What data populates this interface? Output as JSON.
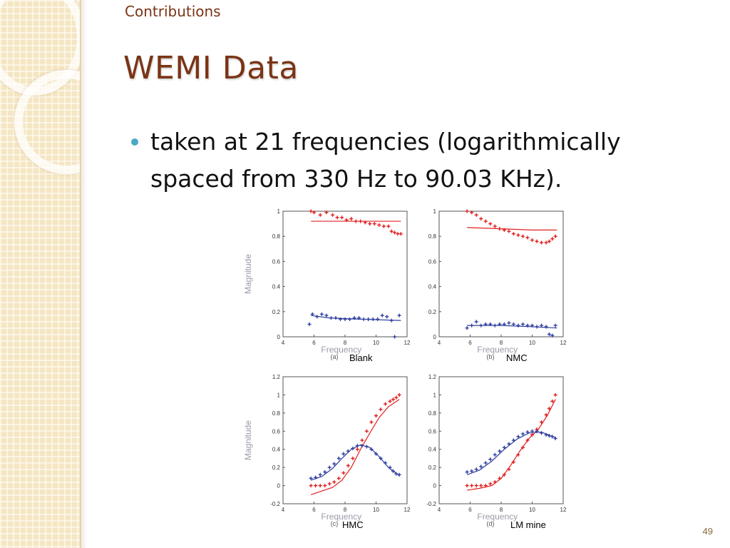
{
  "slide": {
    "section": "Contributions",
    "title": "WEMI Data",
    "bullet": "taken at 21 frequencies (logarithmically spaced from 330 Hz to 90.03 KHz).",
    "page_number": "49"
  },
  "chart_data": [
    {
      "type": "scatter",
      "panel": "(a)",
      "caption": "Blank",
      "xlabel": "Frequency",
      "ylabel": "Magnitude",
      "xlim": [
        4,
        12
      ],
      "ylim": [
        0,
        1
      ],
      "xticks": [
        4,
        6,
        8,
        10,
        12
      ],
      "yticks": [
        0,
        0.2,
        0.4,
        0.6,
        0.8,
        1
      ],
      "ytick_labels": [
        "0",
        "0.2",
        "0.4",
        "0.6",
        "0.8",
        "1"
      ],
      "series": [
        {
          "color": "#e02020",
          "points": [
            [
              5.8,
              1.0
            ],
            [
              6.0,
              0.99
            ],
            [
              6.4,
              0.97
            ],
            [
              6.8,
              0.99
            ],
            [
              7.2,
              0.97
            ],
            [
              7.5,
              0.95
            ],
            [
              7.8,
              0.95
            ],
            [
              8.1,
              0.93
            ],
            [
              8.4,
              0.94
            ],
            [
              8.7,
              0.92
            ],
            [
              9.0,
              0.92
            ],
            [
              9.3,
              0.91
            ],
            [
              9.6,
              0.9
            ],
            [
              9.9,
              0.9
            ],
            [
              10.2,
              0.89
            ],
            [
              10.5,
              0.88
            ],
            [
              10.8,
              0.88
            ],
            [
              11.0,
              0.84
            ],
            [
              11.2,
              0.83
            ],
            [
              11.4,
              0.82
            ],
            [
              11.6,
              0.82
            ]
          ],
          "fit": [
            [
              5.8,
              0.92
            ],
            [
              11.6,
              0.92
            ]
          ]
        },
        {
          "color": "#3040a0",
          "points": [
            [
              5.7,
              0.1
            ],
            [
              5.9,
              0.18
            ],
            [
              6.2,
              0.16
            ],
            [
              6.5,
              0.18
            ],
            [
              6.8,
              0.17
            ],
            [
              7.1,
              0.15
            ],
            [
              7.4,
              0.15
            ],
            [
              7.7,
              0.14
            ],
            [
              8.0,
              0.14
            ],
            [
              8.3,
              0.14
            ],
            [
              8.6,
              0.15
            ],
            [
              8.9,
              0.15
            ],
            [
              9.2,
              0.14
            ],
            [
              9.5,
              0.14
            ],
            [
              9.8,
              0.14
            ],
            [
              10.1,
              0.14
            ],
            [
              10.4,
              0.17
            ],
            [
              10.7,
              0.16
            ],
            [
              11.0,
              0.13
            ],
            [
              11.2,
              0.0
            ],
            [
              11.5,
              0.17
            ]
          ],
          "fit": [
            [
              5.8,
              0.17
            ],
            [
              7,
              0.15
            ],
            [
              9,
              0.14
            ],
            [
              11.6,
              0.13
            ]
          ]
        }
      ]
    },
    {
      "type": "scatter",
      "panel": "(b)",
      "caption": "NMC",
      "xlabel": "Frequency",
      "xlim": [
        4,
        12
      ],
      "ylim": [
        0,
        1
      ],
      "xticks": [
        4,
        6,
        8,
        10,
        12
      ],
      "yticks": [
        0,
        0.2,
        0.4,
        0.6,
        0.8,
        1
      ],
      "ytick_labels": [
        "0",
        "0.2",
        "0.4",
        "0.6",
        "0.8",
        "1"
      ],
      "series": [
        {
          "color": "#e02020",
          "points": [
            [
              5.8,
              1.0
            ],
            [
              6.1,
              0.99
            ],
            [
              6.4,
              0.97
            ],
            [
              6.7,
              0.94
            ],
            [
              7.0,
              0.92
            ],
            [
              7.3,
              0.9
            ],
            [
              7.6,
              0.88
            ],
            [
              7.9,
              0.86
            ],
            [
              8.2,
              0.85
            ],
            [
              8.5,
              0.84
            ],
            [
              8.8,
              0.82
            ],
            [
              9.1,
              0.81
            ],
            [
              9.4,
              0.8
            ],
            [
              9.7,
              0.79
            ],
            [
              10.0,
              0.77
            ],
            [
              10.3,
              0.76
            ],
            [
              10.6,
              0.75
            ],
            [
              10.9,
              0.75
            ],
            [
              11.1,
              0.76
            ],
            [
              11.3,
              0.78
            ],
            [
              11.5,
              0.8
            ]
          ],
          "fit": [
            [
              5.8,
              0.87
            ],
            [
              8,
              0.86
            ],
            [
              10,
              0.85
            ],
            [
              11.6,
              0.85
            ]
          ]
        },
        {
          "color": "#3040a0",
          "points": [
            [
              5.8,
              0.07
            ],
            [
              6.1,
              0.09
            ],
            [
              6.4,
              0.12
            ],
            [
              6.7,
              0.09
            ],
            [
              7.0,
              0.1
            ],
            [
              7.3,
              0.1
            ],
            [
              7.6,
              0.09
            ],
            [
              7.9,
              0.1
            ],
            [
              8.2,
              0.1
            ],
            [
              8.5,
              0.11
            ],
            [
              8.8,
              0.1
            ],
            [
              9.1,
              0.09
            ],
            [
              9.4,
              0.1
            ],
            [
              9.7,
              0.09
            ],
            [
              10.0,
              0.09
            ],
            [
              10.3,
              0.08
            ],
            [
              10.6,
              0.09
            ],
            [
              10.9,
              0.08
            ],
            [
              11.1,
              0.02
            ],
            [
              11.3,
              0.01
            ],
            [
              11.5,
              0.09
            ]
          ],
          "fit": [
            [
              5.8,
              0.09
            ],
            [
              8,
              0.09
            ],
            [
              10,
              0.08
            ],
            [
              11.6,
              0.07
            ]
          ]
        }
      ]
    },
    {
      "type": "scatter",
      "panel": "(c)",
      "caption": "HMC",
      "xlabel": "Frequency",
      "ylabel": "Magnitude",
      "xlim": [
        4,
        12
      ],
      "ylim": [
        -0.2,
        1.2
      ],
      "xticks": [
        4,
        6,
        8,
        10,
        12
      ],
      "yticks": [
        -0.2,
        0,
        0.2,
        0.4,
        0.6,
        0.8,
        1,
        1.2
      ],
      "ytick_labels": [
        "-0.2",
        "0",
        "0.2",
        "0.4",
        "0.6",
        "0.8",
        "1",
        "1.2"
      ],
      "series": [
        {
          "color": "#e02020",
          "points": [
            [
              5.8,
              0.0
            ],
            [
              6.1,
              0.0
            ],
            [
              6.4,
              0.0
            ],
            [
              6.7,
              0.0
            ],
            [
              7.0,
              0.02
            ],
            [
              7.3,
              0.04
            ],
            [
              7.6,
              0.08
            ],
            [
              7.9,
              0.14
            ],
            [
              8.2,
              0.22
            ],
            [
              8.5,
              0.3
            ],
            [
              8.8,
              0.4
            ],
            [
              9.1,
              0.5
            ],
            [
              9.4,
              0.6
            ],
            [
              9.7,
              0.7
            ],
            [
              10.0,
              0.77
            ],
            [
              10.3,
              0.84
            ],
            [
              10.6,
              0.9
            ],
            [
              10.9,
              0.93
            ],
            [
              11.1,
              0.95
            ],
            [
              11.3,
              0.97
            ],
            [
              11.5,
              1.0
            ]
          ],
          "fit": [
            [
              5.8,
              -0.1
            ],
            [
              6.5,
              -0.06
            ],
            [
              7.2,
              -0.02
            ],
            [
              7.8,
              0.06
            ],
            [
              8.4,
              0.2
            ],
            [
              9.0,
              0.4
            ],
            [
              9.6,
              0.58
            ],
            [
              10.2,
              0.75
            ],
            [
              10.8,
              0.87
            ],
            [
              11.5,
              0.95
            ]
          ]
        },
        {
          "color": "#3040a0",
          "points": [
            [
              5.8,
              0.08
            ],
            [
              6.1,
              0.09
            ],
            [
              6.4,
              0.12
            ],
            [
              6.7,
              0.15
            ],
            [
              7.0,
              0.2
            ],
            [
              7.3,
              0.24
            ],
            [
              7.6,
              0.3
            ],
            [
              7.9,
              0.35
            ],
            [
              8.2,
              0.38
            ],
            [
              8.5,
              0.41
            ],
            [
              8.8,
              0.44
            ],
            [
              9.1,
              0.44
            ],
            [
              9.4,
              0.43
            ],
            [
              9.7,
              0.4
            ],
            [
              10.0,
              0.35
            ],
            [
              10.3,
              0.3
            ],
            [
              10.6,
              0.25
            ],
            [
              10.9,
              0.2
            ],
            [
              11.1,
              0.16
            ],
            [
              11.3,
              0.13
            ],
            [
              11.5,
              0.12
            ]
          ],
          "fit": [
            [
              5.8,
              0.06
            ],
            [
              6.5,
              0.1
            ],
            [
              7.2,
              0.19
            ],
            [
              7.8,
              0.3
            ],
            [
              8.4,
              0.4
            ],
            [
              9.0,
              0.45
            ],
            [
              9.6,
              0.42
            ],
            [
              10.2,
              0.32
            ],
            [
              10.8,
              0.2
            ],
            [
              11.5,
              0.11
            ]
          ]
        }
      ]
    },
    {
      "type": "scatter",
      "panel": "(d)",
      "caption": "LM mine",
      "xlabel": "Frequency",
      "xlim": [
        4,
        12
      ],
      "ylim": [
        -0.2,
        1.2
      ],
      "xticks": [
        4,
        6,
        8,
        10,
        12
      ],
      "yticks": [
        -0.2,
        0,
        0.2,
        0.4,
        0.6,
        0.8,
        1,
        1.2
      ],
      "ytick_labels": [
        "-0.2",
        "0",
        "0.2",
        "0.4",
        "0.6",
        "0.8",
        "1",
        "1.2"
      ],
      "series": [
        {
          "color": "#e02020",
          "points": [
            [
              5.8,
              0.0
            ],
            [
              6.1,
              0.0
            ],
            [
              6.4,
              0.0
            ],
            [
              6.7,
              0.0
            ],
            [
              7.0,
              0.0
            ],
            [
              7.3,
              0.02
            ],
            [
              7.6,
              0.04
            ],
            [
              7.9,
              0.08
            ],
            [
              8.2,
              0.12
            ],
            [
              8.5,
              0.18
            ],
            [
              8.8,
              0.26
            ],
            [
              9.1,
              0.34
            ],
            [
              9.4,
              0.42
            ],
            [
              9.7,
              0.5
            ],
            [
              10.0,
              0.56
            ],
            [
              10.3,
              0.62
            ],
            [
              10.6,
              0.7
            ],
            [
              10.9,
              0.78
            ],
            [
              11.1,
              0.85
            ],
            [
              11.3,
              0.93
            ],
            [
              11.5,
              1.0
            ]
          ],
          "fit": [
            [
              5.8,
              -0.05
            ],
            [
              6.6,
              -0.03
            ],
            [
              7.4,
              0.0
            ],
            [
              8.0,
              0.08
            ],
            [
              8.6,
              0.22
            ],
            [
              9.2,
              0.38
            ],
            [
              9.8,
              0.52
            ],
            [
              10.4,
              0.62
            ],
            [
              11.0,
              0.78
            ],
            [
              11.5,
              0.95
            ]
          ]
        },
        {
          "color": "#3040a0",
          "points": [
            [
              5.8,
              0.15
            ],
            [
              6.1,
              0.16
            ],
            [
              6.4,
              0.18
            ],
            [
              6.7,
              0.21
            ],
            [
              7.0,
              0.25
            ],
            [
              7.3,
              0.29
            ],
            [
              7.6,
              0.34
            ],
            [
              7.9,
              0.38
            ],
            [
              8.2,
              0.42
            ],
            [
              8.5,
              0.46
            ],
            [
              8.8,
              0.5
            ],
            [
              9.1,
              0.54
            ],
            [
              9.4,
              0.57
            ],
            [
              9.7,
              0.59
            ],
            [
              10.0,
              0.6
            ],
            [
              10.3,
              0.6
            ],
            [
              10.6,
              0.58
            ],
            [
              10.9,
              0.56
            ],
            [
              11.1,
              0.55
            ],
            [
              11.3,
              0.54
            ],
            [
              11.5,
              0.52
            ]
          ],
          "fit": [
            [
              5.8,
              0.12
            ],
            [
              6.6,
              0.17
            ],
            [
              7.4,
              0.27
            ],
            [
              8.2,
              0.4
            ],
            [
              9.0,
              0.51
            ],
            [
              9.8,
              0.58
            ],
            [
              10.6,
              0.59
            ],
            [
              11.5,
              0.53
            ]
          ]
        }
      ]
    }
  ]
}
